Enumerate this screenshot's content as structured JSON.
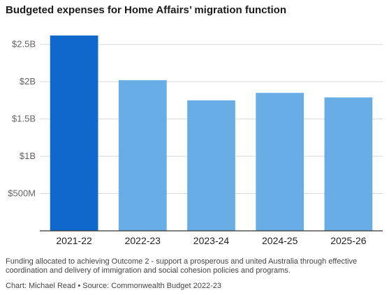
{
  "chart_data": {
    "type": "bar",
    "title": "Budgeted expenses for Home Affairs’ migration function",
    "categories": [
      "2021-22",
      "2022-23",
      "2023-24",
      "2024-25",
      "2025-26"
    ],
    "values": [
      2.62,
      2.02,
      1.75,
      1.85,
      1.79
    ],
    "unit": "billion AUD",
    "ylim": [
      0,
      2.75
    ],
    "yticks": [
      0.5,
      1,
      1.5,
      2,
      2.5
    ],
    "ytick_labels": [
      "$500M",
      "$1B",
      "$1.5B",
      "$2B",
      "$2.5B"
    ],
    "xlabel": "",
    "ylabel": "",
    "grid": true,
    "colors": {
      "highlight": "#1168cc",
      "default": "#68ade6",
      "grid": "#d9d9d9",
      "axis": "#333333"
    },
    "highlight_index": 0
  },
  "note": "Funding allocated to achieving Outcome 2 - support a prosperous and united Australia through effective coordination and delivery of immigration and social cohesion policies and programs.",
  "source": "Chart: Michael Read • Source: Commonwealth Budget 2022-23"
}
